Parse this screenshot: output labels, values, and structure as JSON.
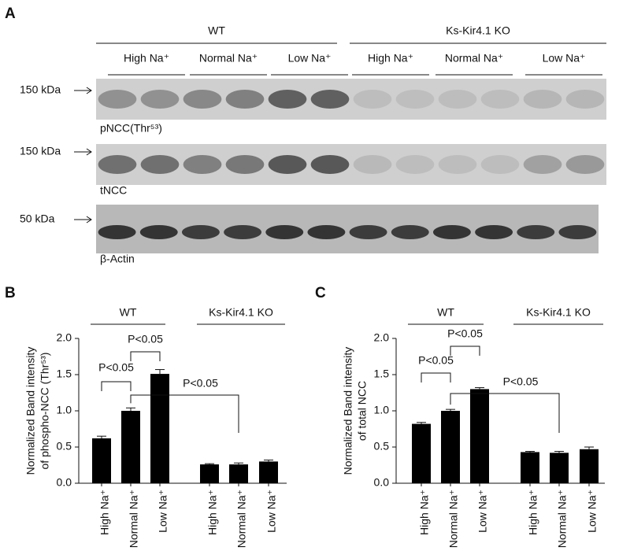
{
  "panel_a": {
    "letter": "A",
    "groups": [
      "WT",
      "Ks-Kir4.1 KO"
    ],
    "lanes": [
      "High Na⁺",
      "Normal Na⁺",
      "Low Na⁺",
      "High Na⁺",
      "Normal Na⁺",
      "Low Na⁺"
    ],
    "blots": [
      {
        "marker": "150 kDa",
        "label": "pNCC(Thr⁵³)"
      },
      {
        "marker": "150 kDa",
        "label": "tNCC"
      },
      {
        "marker": "50 kDa",
        "label": "β-Actin"
      }
    ]
  },
  "chart_data": [
    {
      "type": "bar",
      "panel": "B",
      "y_label": [
        "Normalized Band intensity",
        "of phospho-NCC (Thr⁵³)"
      ],
      "groups": [
        "WT",
        "Ks-Kir4.1 KO"
      ],
      "categories": [
        "High Na⁺",
        "Normal Na⁺",
        "Low Na⁺",
        "High Na⁺",
        "Normal Na⁺",
        "Low Na⁺"
      ],
      "values": [
        0.62,
        1.0,
        1.51,
        0.26,
        0.26,
        0.3
      ],
      "errors": [
        0.03,
        0.04,
        0.06,
        0.01,
        0.02,
        0.02
      ],
      "color": "#000000",
      "ylim": [
        0,
        2.0
      ],
      "yticks": [
        {
          "value": 0,
          "label": "0.0"
        },
        0.5,
        {
          "value": 1,
          "label": "1.0"
        },
        1.5,
        {
          "value": 2,
          "label": "2.0"
        }
      ],
      "annotations": [
        "P<0.05",
        "P<0.05",
        "P<0.05"
      ]
    },
    {
      "type": "bar",
      "panel": "C",
      "y_label": [
        "Normalized Band intensity",
        "of total NCC"
      ],
      "groups": [
        "WT",
        "Ks-Kir4.1 KO"
      ],
      "categories": [
        "High Na⁺",
        "Normal Na⁺",
        "Low Na⁺",
        "High Na⁺",
        "Normal Na⁺",
        "Low Na⁺"
      ],
      "values": [
        0.82,
        1.0,
        1.3,
        0.43,
        0.42,
        0.47
      ],
      "errors": [
        0.02,
        0.02,
        0.02,
        0.01,
        0.02,
        0.03
      ],
      "color": "#000000",
      "ylim": [
        0,
        2.0
      ],
      "yticks": [
        {
          "value": 0,
          "label": "0.0"
        },
        0.5,
        {
          "value": 1,
          "label": "1.0"
        },
        1.5,
        {
          "value": 2,
          "label": "2.0"
        }
      ],
      "annotations": [
        "P<0.05",
        "P<0.05",
        "P<0.05"
      ]
    }
  ]
}
